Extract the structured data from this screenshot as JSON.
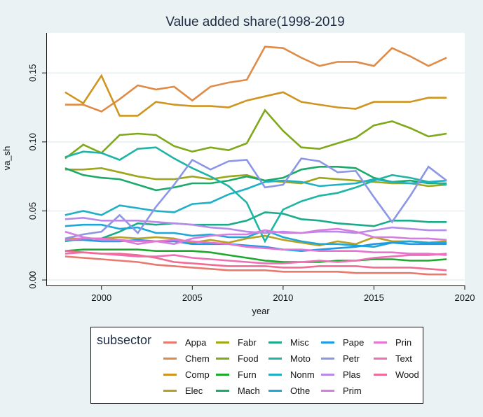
{
  "chart_data": {
    "type": "line",
    "title": "Value added share(1998-2019",
    "xlabel": "year",
    "ylabel": "va_sh",
    "xlim": [
      1997,
      2020
    ],
    "ylim": [
      -0.004,
      0.179
    ],
    "xticks": [
      2000,
      2005,
      2010,
      2015,
      2020
    ],
    "yticks": [
      0.0,
      0.05,
      0.1,
      0.15
    ],
    "ytick_labels": [
      "0.00",
      "0.05",
      "0.10",
      "0.15"
    ],
    "grid": true,
    "legend": {
      "title": "subsector",
      "position": "bottom"
    },
    "x": [
      1998,
      1999,
      2000,
      2001,
      2002,
      2003,
      2004,
      2005,
      2006,
      2007,
      2008,
      2009,
      2010,
      2011,
      2012,
      2013,
      2014,
      2015,
      2016,
      2017,
      2018,
      2019
    ],
    "series": [
      {
        "name": "Appa",
        "color": "#E8796F",
        "values": [
          0.017,
          0.016,
          0.015,
          0.014,
          0.013,
          0.011,
          0.01,
          0.009,
          0.008,
          0.007,
          0.007,
          0.007,
          0.006,
          0.006,
          0.006,
          0.006,
          0.005,
          0.005,
          0.005,
          0.005,
          0.004,
          0.004
        ]
      },
      {
        "name": "Chem",
        "color": "#DE8B47",
        "values": [
          0.127,
          0.127,
          0.122,
          0.131,
          0.141,
          0.138,
          0.14,
          0.13,
          0.14,
          0.143,
          0.145,
          0.169,
          0.168,
          0.161,
          0.155,
          0.158,
          0.158,
          0.155,
          0.168,
          0.162,
          0.155,
          0.161
        ]
      },
      {
        "name": "Comp",
        "color": "#CF9520",
        "values": [
          0.136,
          0.128,
          0.148,
          0.119,
          0.119,
          0.129,
          0.127,
          0.126,
          0.126,
          0.125,
          0.13,
          0.133,
          0.136,
          0.129,
          0.127,
          0.125,
          0.124,
          0.129,
          0.129,
          0.129,
          0.132,
          0.132
        ]
      },
      {
        "name": "Elec",
        "color": "#B8A020",
        "values": [
          0.03,
          0.03,
          0.03,
          0.031,
          0.03,
          0.031,
          0.03,
          0.027,
          0.029,
          0.027,
          0.03,
          0.032,
          0.029,
          0.027,
          0.025,
          0.028,
          0.026,
          0.031,
          0.028,
          0.028,
          0.027,
          0.028
        ]
      },
      {
        "name": "Fabr",
        "color": "#9EA61A",
        "values": [
          0.08,
          0.08,
          0.081,
          0.078,
          0.075,
          0.073,
          0.073,
          0.075,
          0.073,
          0.075,
          0.076,
          0.072,
          0.071,
          0.07,
          0.074,
          0.073,
          0.072,
          0.071,
          0.07,
          0.07,
          0.068,
          0.069
        ]
      },
      {
        "name": "Food",
        "color": "#7FA81A",
        "values": [
          0.088,
          0.098,
          0.092,
          0.105,
          0.106,
          0.105,
          0.097,
          0.093,
          0.096,
          0.094,
          0.099,
          0.123,
          0.108,
          0.096,
          0.095,
          0.099,
          0.103,
          0.112,
          0.115,
          0.11,
          0.104,
          0.106
        ]
      },
      {
        "name": "Furn",
        "color": "#1EA82E",
        "values": [
          0.021,
          0.022,
          0.022,
          0.022,
          0.022,
          0.021,
          0.021,
          0.021,
          0.02,
          0.018,
          0.016,
          0.014,
          0.013,
          0.013,
          0.013,
          0.014,
          0.014,
          0.015,
          0.015,
          0.014,
          0.014,
          0.015
        ]
      },
      {
        "name": "Mach",
        "color": "#1CAA6A",
        "values": [
          0.081,
          0.076,
          0.074,
          0.073,
          0.069,
          0.065,
          0.067,
          0.07,
          0.07,
          0.072,
          0.075,
          0.072,
          0.074,
          0.08,
          0.082,
          0.082,
          0.081,
          0.074,
          0.071,
          0.072,
          0.07,
          0.07
        ]
      },
      {
        "name": "Misc",
        "color": "#1AAC8A",
        "values": [
          0.028,
          0.03,
          0.03,
          0.035,
          0.041,
          0.04,
          0.041,
          0.04,
          0.04,
          0.04,
          0.043,
          0.049,
          0.048,
          0.044,
          0.043,
          0.041,
          0.04,
          0.039,
          0.043,
          0.043,
          0.042,
          0.042
        ]
      },
      {
        "name": "Moto",
        "color": "#1EB5A6",
        "values": [
          0.089,
          0.093,
          0.092,
          0.087,
          0.095,
          0.096,
          0.088,
          0.081,
          0.075,
          0.068,
          0.056,
          0.028,
          0.051,
          0.057,
          0.061,
          0.063,
          0.067,
          0.072,
          0.076,
          0.074,
          0.071,
          0.069
        ]
      },
      {
        "name": "Nonm",
        "color": "#1EB0C4",
        "values": [
          0.047,
          0.05,
          0.047,
          0.054,
          0.052,
          0.05,
          0.049,
          0.055,
          0.056,
          0.062,
          0.066,
          0.071,
          0.072,
          0.071,
          0.068,
          0.069,
          0.07,
          0.073,
          0.071,
          0.07,
          0.071,
          0.072
        ]
      },
      {
        "name": "Othe",
        "color": "#1DA8D8",
        "values": [
          0.039,
          0.04,
          0.04,
          0.037,
          0.038,
          0.034,
          0.034,
          0.032,
          0.033,
          0.031,
          0.031,
          0.036,
          0.031,
          0.028,
          0.026,
          0.026,
          0.025,
          0.024,
          0.027,
          0.028,
          0.027,
          0.027
        ]
      },
      {
        "name": "Pape",
        "color": "#1F9BE6",
        "values": [
          0.029,
          0.029,
          0.028,
          0.028,
          0.029,
          0.028,
          0.028,
          0.026,
          0.026,
          0.026,
          0.025,
          0.024,
          0.022,
          0.021,
          0.022,
          0.023,
          0.024,
          0.026,
          0.027,
          0.026,
          0.026,
          0.026
        ]
      },
      {
        "name": "Petr",
        "color": "#8C96E6",
        "values": [
          0.03,
          0.033,
          0.035,
          0.047,
          0.034,
          0.053,
          0.069,
          0.087,
          0.08,
          0.086,
          0.087,
          0.067,
          0.069,
          0.088,
          0.086,
          0.078,
          0.079,
          0.06,
          0.042,
          0.061,
          0.082,
          0.072
        ]
      },
      {
        "name": "Plas",
        "color": "#B88AE8",
        "values": [
          0.044,
          0.045,
          0.043,
          0.043,
          0.043,
          0.042,
          0.041,
          0.04,
          0.038,
          0.037,
          0.035,
          0.034,
          0.035,
          0.034,
          0.035,
          0.035,
          0.034,
          0.036,
          0.038,
          0.037,
          0.036,
          0.036
        ]
      },
      {
        "name": "Prim",
        "color": "#D47EE0",
        "values": [
          0.035,
          0.031,
          0.029,
          0.029,
          0.026,
          0.028,
          0.026,
          0.03,
          0.032,
          0.033,
          0.033,
          0.036,
          0.034,
          0.034,
          0.036,
          0.037,
          0.035,
          0.031,
          0.031,
          0.03,
          0.03,
          0.029
        ]
      },
      {
        "name": "Prin",
        "color": "#E874D2",
        "values": [
          0.029,
          0.03,
          0.03,
          0.029,
          0.028,
          0.028,
          0.029,
          0.028,
          0.027,
          0.026,
          0.024,
          0.023,
          0.022,
          0.022,
          0.021,
          0.021,
          0.021,
          0.02,
          0.02,
          0.019,
          0.019,
          0.018
        ]
      },
      {
        "name": "Text",
        "color": "#EE6FB5",
        "values": [
          0.019,
          0.02,
          0.019,
          0.018,
          0.017,
          0.017,
          0.018,
          0.016,
          0.015,
          0.014,
          0.013,
          0.012,
          0.012,
          0.013,
          0.014,
          0.013,
          0.014,
          0.016,
          0.017,
          0.018,
          0.018,
          0.019
        ]
      },
      {
        "name": "Wood",
        "color": "#F06C95",
        "values": [
          0.021,
          0.02,
          0.019,
          0.019,
          0.018,
          0.016,
          0.013,
          0.012,
          0.011,
          0.01,
          0.01,
          0.01,
          0.009,
          0.009,
          0.01,
          0.01,
          0.01,
          0.009,
          0.009,
          0.009,
          0.008,
          0.007
        ]
      }
    ]
  }
}
